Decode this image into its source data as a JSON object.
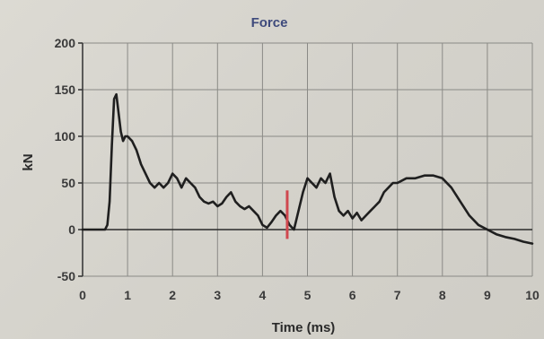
{
  "chart_data": {
    "type": "line",
    "title": "Force",
    "xlabel": "Time (ms)",
    "ylabel": "kN",
    "xlim": [
      0,
      10
    ],
    "ylim": [
      -50,
      200
    ],
    "x_ticks": [
      0,
      1,
      2,
      3,
      4,
      5,
      6,
      7,
      8,
      9,
      10
    ],
    "y_ticks": [
      200,
      150,
      100,
      50,
      0,
      -50
    ],
    "grid": true,
    "series": [
      {
        "color": "#1f1f1f",
        "x": [
          0,
          0.5,
          0.55,
          0.6,
          0.65,
          0.7,
          0.75,
          0.8,
          0.85,
          0.9,
          0.95,
          1.0,
          1.1,
          1.2,
          1.3,
          1.4,
          1.5,
          1.6,
          1.7,
          1.8,
          1.9,
          2.0,
          2.1,
          2.2,
          2.3,
          2.4,
          2.5,
          2.6,
          2.7,
          2.8,
          2.9,
          3.0,
          3.1,
          3.2,
          3.3,
          3.4,
          3.5,
          3.6,
          3.7,
          3.8,
          3.9,
          4.0,
          4.1,
          4.2,
          4.3,
          4.4,
          4.5,
          4.6,
          4.7,
          4.8,
          4.9,
          5.0,
          5.1,
          5.2,
          5.3,
          5.4,
          5.5,
          5.6,
          5.7,
          5.8,
          5.9,
          6.0,
          6.1,
          6.2,
          6.3,
          6.4,
          6.5,
          6.6,
          6.7,
          6.8,
          6.9,
          7.0,
          7.2,
          7.4,
          7.6,
          7.8,
          8.0,
          8.2,
          8.4,
          8.6,
          8.8,
          9.0,
          9.2,
          9.4,
          9.6,
          9.8,
          10.0
        ],
        "y": [
          0,
          0,
          5,
          30,
          90,
          140,
          145,
          125,
          105,
          95,
          100,
          100,
          95,
          85,
          70,
          60,
          50,
          45,
          50,
          45,
          50,
          60,
          55,
          45,
          55,
          50,
          45,
          35,
          30,
          28,
          30,
          25,
          28,
          35,
          40,
          30,
          25,
          22,
          25,
          20,
          15,
          5,
          2,
          8,
          15,
          20,
          15,
          5,
          0,
          20,
          40,
          55,
          50,
          45,
          55,
          50,
          60,
          35,
          20,
          15,
          20,
          12,
          18,
          10,
          15,
          20,
          25,
          30,
          40,
          45,
          50,
          50,
          55,
          55,
          58,
          58,
          55,
          45,
          30,
          15,
          5,
          0,
          -5,
          -8,
          -10,
          -13,
          -15
        ]
      }
    ],
    "annotations": [
      {
        "type": "vertical-marker",
        "color": "#d0484f",
        "x": 4.55,
        "y_from": -10,
        "y_to": 42
      }
    ]
  }
}
